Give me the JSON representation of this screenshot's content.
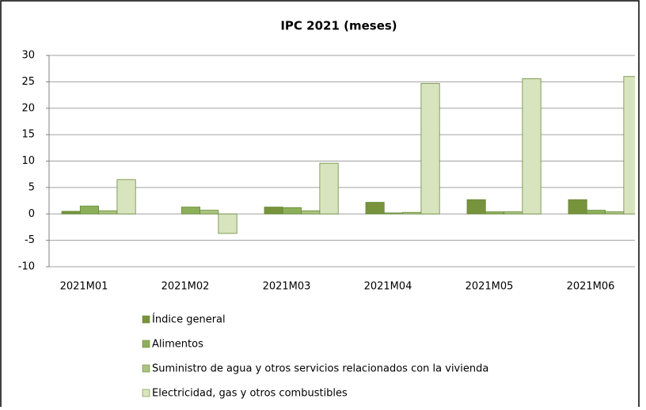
{
  "chart_data": {
    "type": "bar",
    "title": "IPC 2021 (meses)",
    "categories": [
      "2021M01",
      "2021M02",
      "2021M03",
      "2021M04",
      "2021M05",
      "2021M06"
    ],
    "series": [
      {
        "name": "Índice general",
        "color": "#77933c",
        "values": [
          0.5,
          0.0,
          1.3,
          2.2,
          2.7,
          2.7
        ]
      },
      {
        "name": "Alimentos",
        "color": "#8cb05a",
        "values": [
          1.5,
          1.3,
          1.2,
          0.2,
          0.4,
          0.7
        ]
      },
      {
        "name": "Suministro de agua y otros servicios relacionados con la vivienda",
        "color": "#a9c47f",
        "values": [
          0.6,
          0.7,
          0.6,
          0.3,
          0.4,
          0.4
        ]
      },
      {
        "name": "Electricidad, gas y otros combustibles",
        "color": "#d7e4bd",
        "values": [
          6.5,
          -3.7,
          9.6,
          24.7,
          25.6,
          26.0
        ]
      }
    ],
    "ylim": [
      -10,
      30
    ],
    "yticks": [
      -10,
      -5,
      0,
      5,
      10,
      15,
      20,
      25,
      30
    ],
    "grid": true,
    "legend": "bottom"
  }
}
